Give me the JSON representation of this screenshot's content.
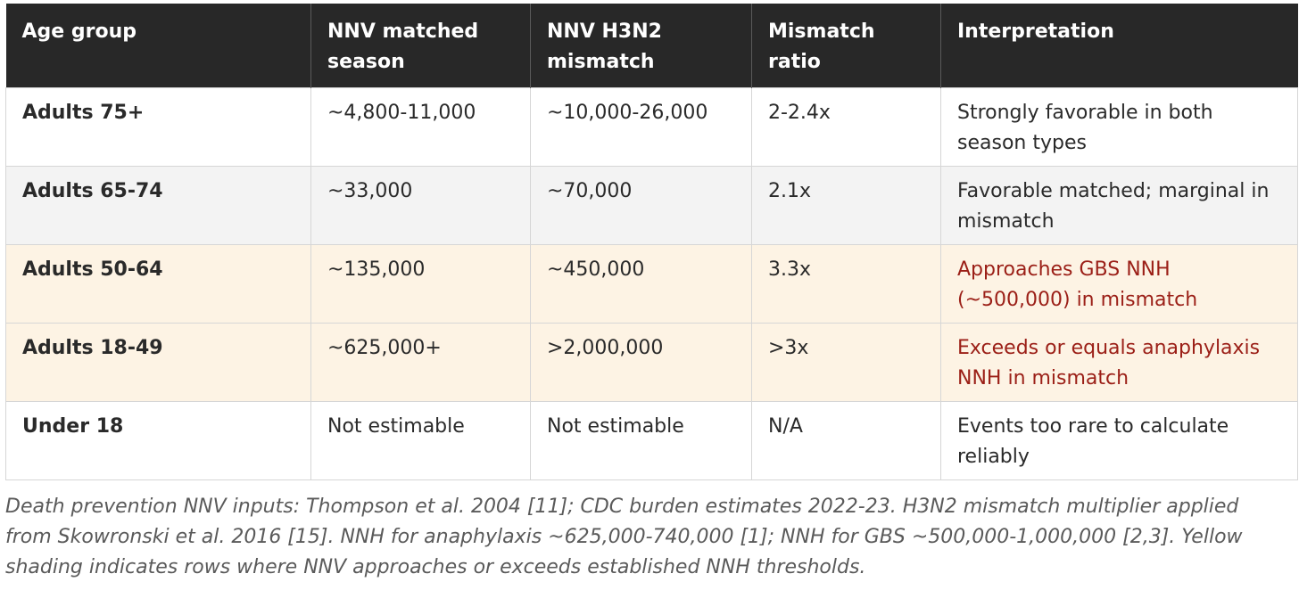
{
  "table": {
    "headers": [
      "Age group",
      "NNV matched season",
      "NNV H3N2 mismatch",
      "Mismatch ratio",
      "Interpretation"
    ],
    "rows": [
      {
        "age_group": "Adults 75+",
        "nnv_matched": "~4,800-11,000",
        "nnv_mismatch": "~10,000-26,000",
        "mismatch_ratio": "2-2.4x",
        "interpretation": "Strongly favorable in both season types",
        "shading": "white",
        "highlight": false
      },
      {
        "age_group": "Adults 65-74",
        "nnv_matched": "~33,000",
        "nnv_mismatch": "~70,000",
        "mismatch_ratio": "2.1x",
        "interpretation": "Favorable matched; marginal in mismatch",
        "shading": "gray",
        "highlight": false
      },
      {
        "age_group": "Adults 50-64",
        "nnv_matched": "~135,000",
        "nnv_mismatch": "~450,000",
        "mismatch_ratio": "3.3x",
        "interpretation": "Approaches GBS NNH (~500,000) in mismatch",
        "shading": "yellow",
        "highlight": true
      },
      {
        "age_group": "Adults 18-49",
        "nnv_matched": "~625,000+",
        "nnv_mismatch": ">2,000,000",
        "mismatch_ratio": ">3x",
        "interpretation": "Exceeds or equals anaphylaxis NNH in mismatch",
        "shading": "yellow",
        "highlight": true
      },
      {
        "age_group": "Under 18",
        "nnv_matched": "Not estimable",
        "nnv_mismatch": "Not estimable",
        "mismatch_ratio": "N/A",
        "interpretation": "Events too rare to calculate reliably",
        "shading": "white",
        "highlight": false
      }
    ]
  },
  "caption": "Death prevention NNV inputs: Thompson et al. 2004 [11]; CDC burden estimates 2022-23. H3N2 mismatch multiplier applied from Skowronski et al. 2016 [15]. NNH for anaphylaxis ~625,000-740,000 [1]; NNH for GBS ~500,000-1,000,000 [2,3]. Yellow shading indicates rows where NNV approaches or exceeds established NNH thresholds.",
  "colors": {
    "header_bg": "#282828",
    "highlight_text": "#9b1f17",
    "yellow_row": "#fdf3e4",
    "gray_row": "#f3f3f3"
  }
}
